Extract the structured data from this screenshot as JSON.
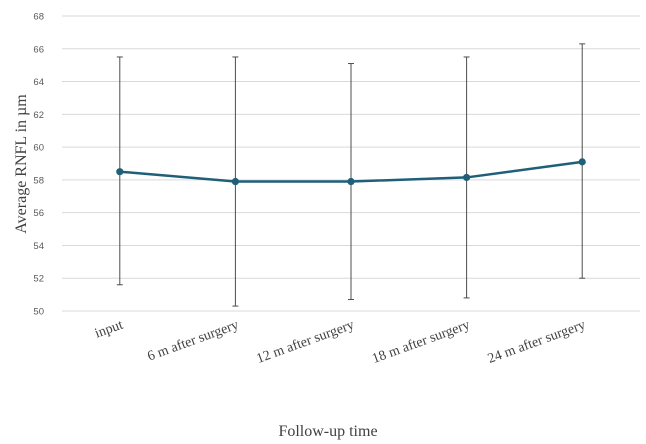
{
  "chart_data": {
    "type": "line",
    "title": "",
    "xlabel": "Follow-up time",
    "ylabel": "Average RNFL in µm",
    "categories": [
      "input",
      "6 m after surgery",
      "12 m after surgery",
      "18 m after surgery",
      "24 m after surgery"
    ],
    "series": [
      {
        "values": [
          58.5,
          57.9,
          57.9,
          58.15,
          59.1
        ],
        "error_low": [
          51.6,
          50.3,
          50.7,
          50.8,
          52.0
        ],
        "error_high": [
          65.5,
          65.5,
          65.1,
          65.5,
          66.3
        ]
      }
    ],
    "ylim": [
      50,
      68
    ],
    "yticks": [
      50,
      52,
      54,
      56,
      58,
      60,
      62,
      64,
      66,
      68
    ],
    "grid": true,
    "legend": "none",
    "colors": {
      "line": "#1f5f78",
      "marker": "#1f5f78",
      "errorbar": "#4d4d4d",
      "grid": "#d9d9d9",
      "text": "#595959"
    }
  }
}
